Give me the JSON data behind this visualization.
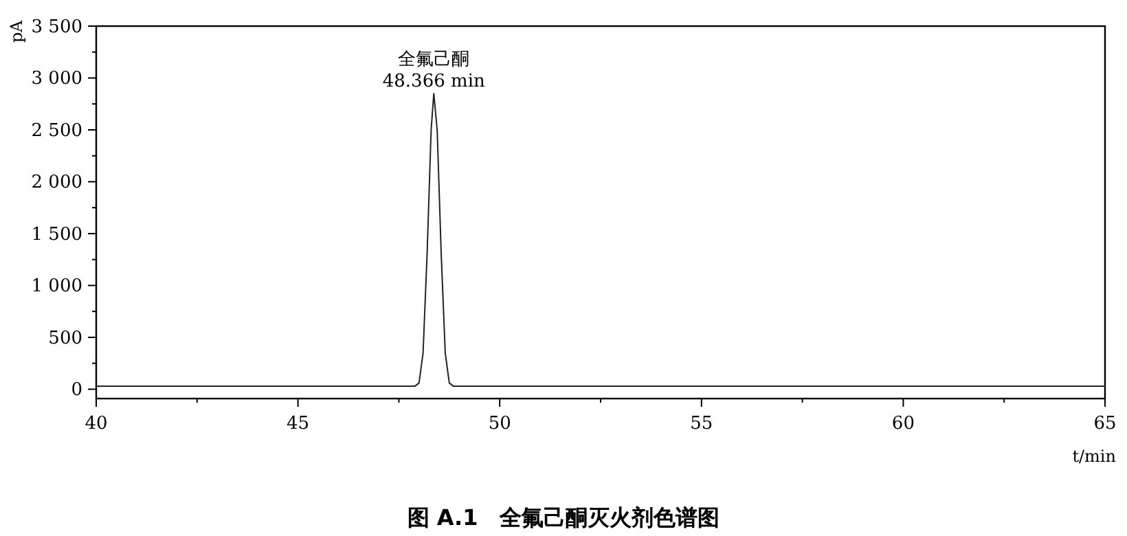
{
  "chart_data": {
    "type": "line",
    "title": "图 A.1　全氟己酮灭火剂色谱图",
    "xlabel": "t/min",
    "ylabel": "pA",
    "x": [
      40,
      47.9,
      48.0,
      48.1,
      48.2,
      48.3,
      48.366,
      48.45,
      48.55,
      48.65,
      48.75,
      48.85,
      65
    ],
    "series": [
      {
        "color": "#222222",
        "values": [
          30,
          30,
          60,
          350,
          1300,
          2500,
          2850,
          2500,
          1300,
          350,
          60,
          30,
          30
        ]
      }
    ],
    "annotations": [
      {
        "text": "全氟己酮\n48.366 min",
        "x": 48.366,
        "y": 2850
      }
    ],
    "xlim": [
      40,
      65
    ],
    "ylim": [
      -90,
      3500
    ],
    "xticks": [
      40,
      {
        "value": 42.5,
        "label": null
      },
      45,
      {
        "value": 47.5,
        "label": null
      },
      50,
      {
        "value": 52.5,
        "label": null
      },
      55,
      {
        "value": 57.5,
        "label": null
      },
      60,
      {
        "value": 62.5,
        "label": null
      },
      65
    ],
    "yticks": [
      0,
      {
        "value": 250,
        "label": null
      },
      500,
      {
        "value": 750,
        "label": null
      },
      {
        "value": 1000,
        "label": "1 000"
      },
      {
        "value": 1250,
        "label": null
      },
      {
        "value": 1500,
        "label": "1 500"
      },
      {
        "value": 1750,
        "label": null
      },
      {
        "value": 2000,
        "label": "2 000"
      },
      {
        "value": 2250,
        "label": null
      },
      {
        "value": 2500,
        "label": "2 500"
      },
      {
        "value": 2750,
        "label": null
      },
      {
        "value": 3000,
        "label": "3 000"
      },
      {
        "value": 3250,
        "label": null
      },
      {
        "value": 3500,
        "label": "3 500"
      }
    ],
    "grid": false,
    "marker": "none",
    "line_style": "solid"
  }
}
